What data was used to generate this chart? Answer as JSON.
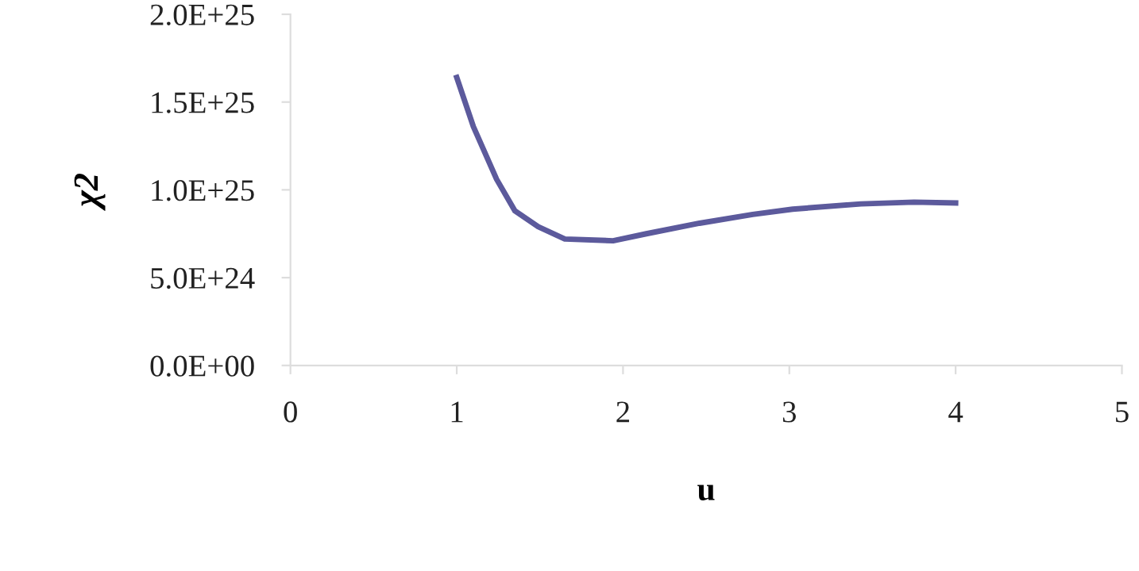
{
  "chart_data": {
    "type": "line",
    "xlabel": "u",
    "ylabel": "χ2",
    "x": [
      1.0,
      1.1,
      1.24,
      1.35,
      1.49,
      1.65,
      1.94,
      2.14,
      2.46,
      2.78,
      3.02,
      3.43,
      3.75,
      4.0
    ],
    "series": [
      {
        "color": "#5c5a9c",
        "values": [
          1.64e+25,
          1.36e+25,
          1.06e+25,
          8.8e+24,
          7.9e+24,
          7.2e+24,
          7.1e+24,
          7.5e+24,
          8.1e+24,
          8.6e+24,
          8.9e+24,
          9.2e+24,
          9.3e+24,
          9.25e+24
        ]
      }
    ],
    "xlim": [
      0,
      5
    ],
    "xticks": [
      0,
      1,
      2,
      3,
      4,
      5
    ],
    "ylim": [
      0,
      2e+25
    ],
    "yticks": [
      {
        "value": 0,
        "label": "0.0E+00"
      },
      {
        "value": 5e+24,
        "label": "5.0E+24"
      },
      {
        "value": 1e+25,
        "label": "1.0E+25"
      },
      {
        "value": 1.5e+25,
        "label": "1.5E+25"
      },
      {
        "value": 2e+25,
        "label": "2.0E+25"
      }
    ],
    "grid": false,
    "legend": false,
    "marker": "none",
    "line_style": "solid"
  }
}
